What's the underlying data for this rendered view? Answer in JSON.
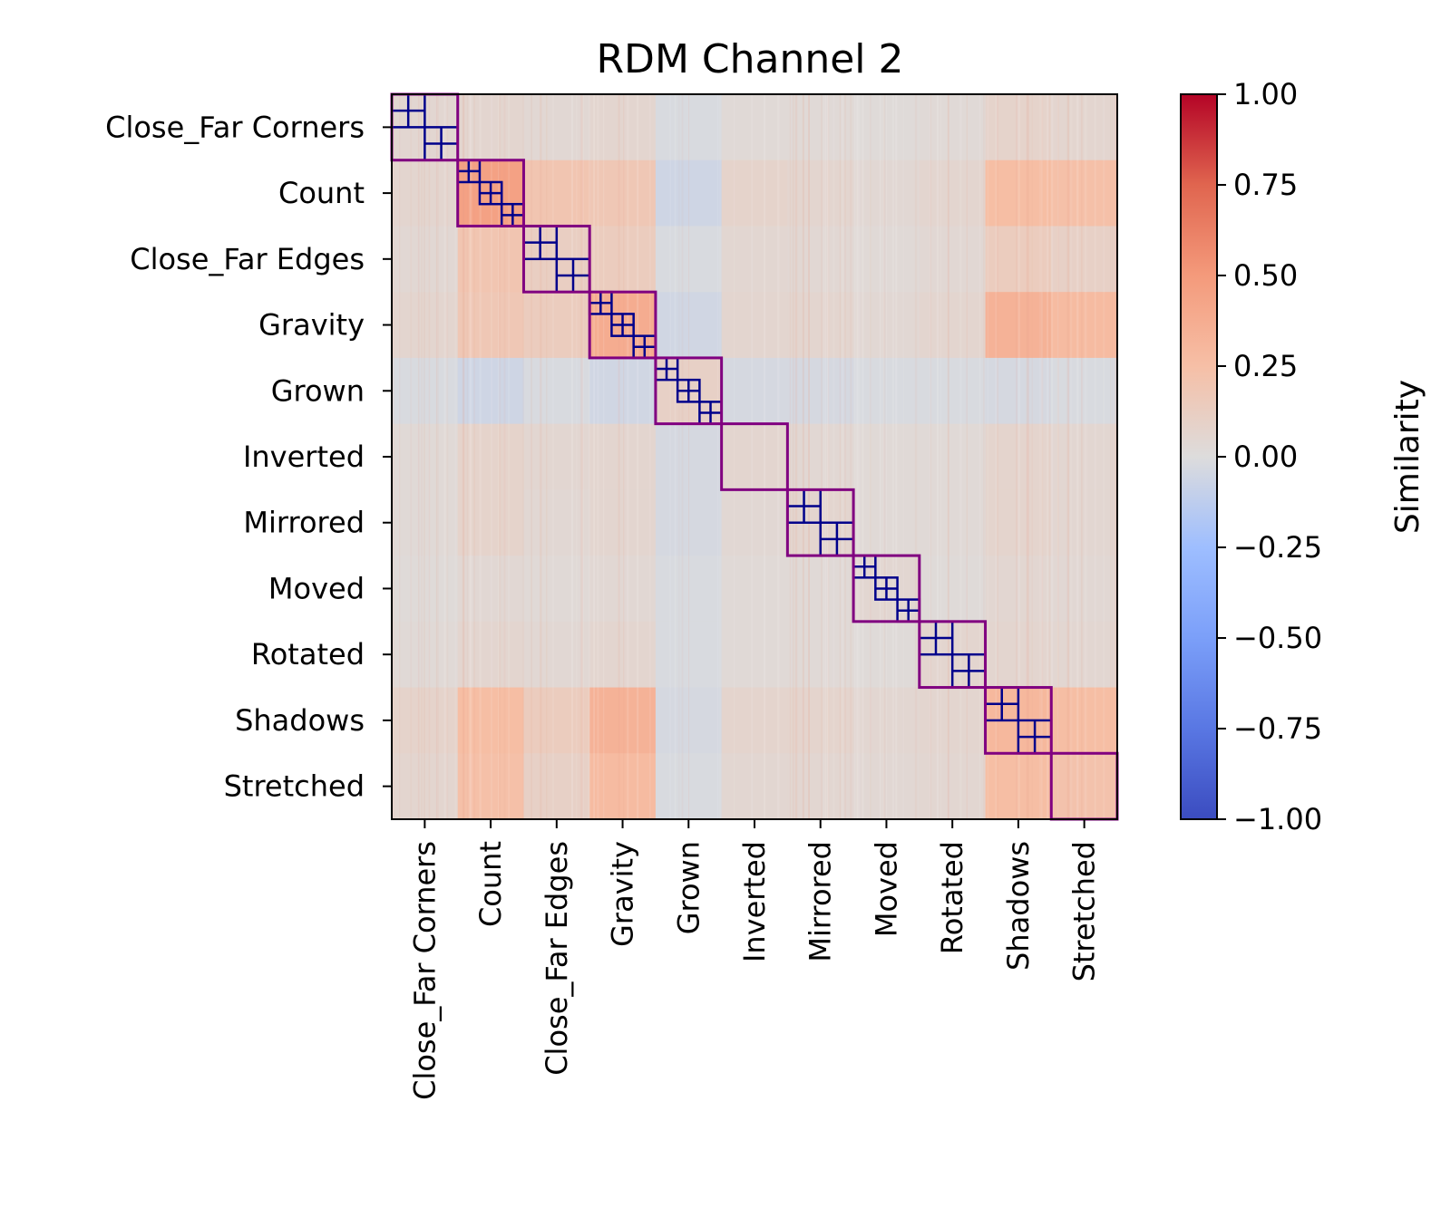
{
  "chart_data": {
    "type": "heatmap",
    "title": "RDM Channel 2",
    "categories": [
      "Close_Far Corners",
      "Count",
      "Close_Far Edges",
      "Gravity",
      "Grown",
      "Inverted",
      "Mirrored",
      "Moved",
      "Rotated",
      "Shadows",
      "Stretched"
    ],
    "colorbar": {
      "label": "Similarity",
      "range": [
        -1.0,
        1.0
      ],
      "ticks": [
        "1.00",
        "0.75",
        "0.50",
        "0.25",
        "0.00",
        "−0.25",
        "−0.50",
        "−0.75",
        "−1.00"
      ],
      "tick_values": [
        1.0,
        0.75,
        0.5,
        0.25,
        0.0,
        -0.25,
        -0.5,
        -0.75,
        -1.0
      ],
      "colormap": "coolwarm"
    },
    "block_similarity": [
      [
        0.05,
        0.06,
        0.04,
        0.06,
        -0.02,
        0.03,
        0.03,
        0.02,
        0.03,
        0.08,
        0.06
      ],
      [
        0.06,
        0.45,
        0.2,
        0.18,
        -0.06,
        0.08,
        0.06,
        0.04,
        0.06,
        0.26,
        0.24
      ],
      [
        0.04,
        0.2,
        0.12,
        0.14,
        -0.02,
        0.05,
        0.04,
        0.03,
        0.04,
        0.14,
        0.1
      ],
      [
        0.06,
        0.18,
        0.14,
        0.38,
        -0.05,
        0.06,
        0.06,
        0.04,
        0.06,
        0.34,
        0.28
      ],
      [
        -0.02,
        -0.06,
        -0.02,
        -0.05,
        0.1,
        -0.03,
        -0.03,
        -0.02,
        -0.02,
        -0.03,
        -0.02
      ],
      [
        0.03,
        0.08,
        0.05,
        0.06,
        -0.03,
        0.06,
        0.04,
        0.03,
        0.03,
        0.07,
        0.05
      ],
      [
        0.03,
        0.08,
        0.04,
        0.06,
        -0.03,
        0.04,
        0.06,
        0.03,
        0.03,
        0.07,
        0.05
      ],
      [
        0.02,
        0.04,
        0.03,
        0.04,
        -0.02,
        0.03,
        0.03,
        0.05,
        0.02,
        0.05,
        0.04
      ],
      [
        0.03,
        0.06,
        0.04,
        0.06,
        -0.02,
        0.03,
        0.03,
        0.02,
        0.06,
        0.06,
        0.05
      ],
      [
        0.08,
        0.26,
        0.14,
        0.34,
        -0.03,
        0.07,
        0.07,
        0.05,
        0.06,
        0.3,
        0.26
      ],
      [
        0.06,
        0.24,
        0.1,
        0.28,
        -0.02,
        0.05,
        0.05,
        0.04,
        0.05,
        0.26,
        0.22
      ]
    ],
    "group_subdivisions": [
      2,
      3,
      2,
      3,
      3,
      1,
      2,
      3,
      2,
      2,
      1
    ],
    "group_outline_color": "#800080",
    "subgroup_line_color": "#00008b",
    "grid": false
  }
}
